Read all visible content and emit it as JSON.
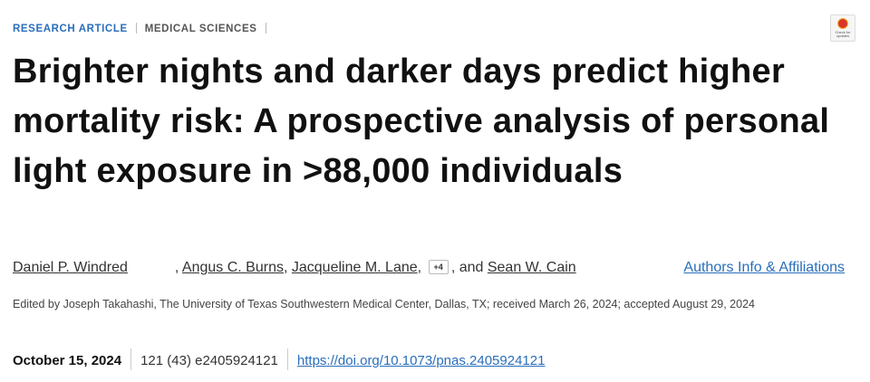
{
  "header": {
    "article_type": "RESEARCH ARTICLE",
    "section": "MEDICAL SCIENCES",
    "badge": "Check for updates",
    "title": "Brighter nights and darker days predict higher mortality risk: A prospective analysis of personal light exposure in >88,000 individuals"
  },
  "authors": {
    "names": [
      "Daniel P. Windred",
      "Angus C. Burns",
      "Jacqueline M. Lane",
      "Sean W. Cain"
    ],
    "separator": ",",
    "more": "+4",
    "conjunction": ", and",
    "info_link": "Authors Info & Affiliations"
  },
  "edited": "Edited by Joseph Takahashi, The University of Texas Southwestern Medical Center, Dallas, TX; received March 26, 2024; accepted August 29, 2024",
  "publication": {
    "date": "October 15, 2024",
    "citation": "121 (43) e2405924121",
    "doi": "https://doi.org/10.1073/pnas.2405924121"
  }
}
